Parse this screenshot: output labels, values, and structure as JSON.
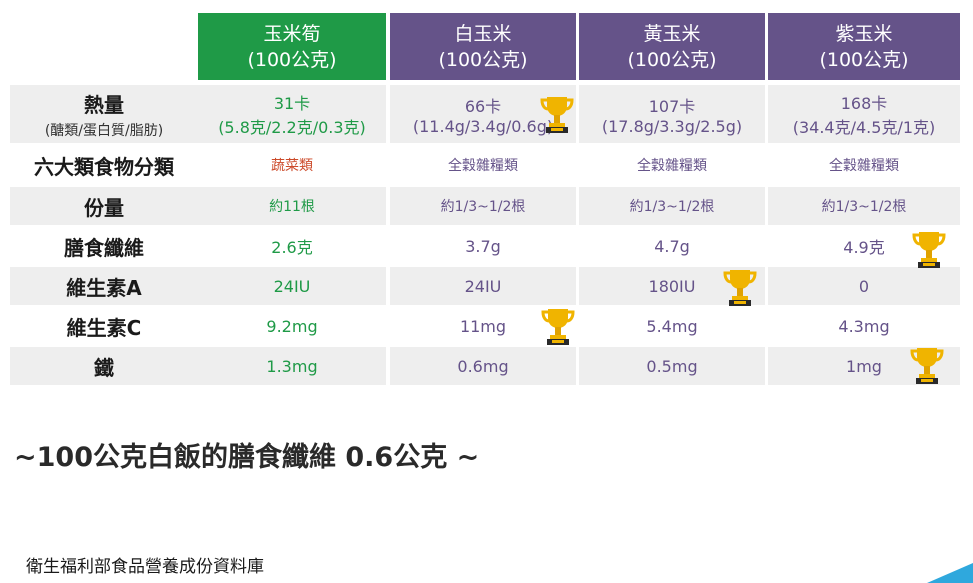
{
  "columns": [
    {
      "name": "玉米筍",
      "unit": "(100公克)"
    },
    {
      "name": "白玉米",
      "unit": "(100公克)"
    },
    {
      "name": "黃玉米",
      "unit": "(100公克)"
    },
    {
      "name": "紫玉米",
      "unit": "(100公克)"
    }
  ],
  "rows": [
    {
      "label": "熱量",
      "sub": "(醣類/蛋白質/脂肪)",
      "values": [
        {
          "line1": "31卡",
          "line2": "(5.8克/2.2克/0.3克)"
        },
        {
          "line1": "66卡",
          "line2": "(11.4g/3.4g/0.6g)"
        },
        {
          "line1": "107卡",
          "line2": "(17.8g/3.3g/2.5g)"
        },
        {
          "line1": "168卡",
          "line2": "(34.4克/4.5克/1克)"
        }
      ]
    },
    {
      "label": "六大類食物分類",
      "values": [
        "蔬菜類",
        "全穀雜糧類",
        "全穀雜糧類",
        "全穀雜糧類"
      ]
    },
    {
      "label": "份量",
      "values": [
        "約11根",
        "約1/3~1/2根",
        "約1/3~1/2根",
        "約1/3~1/2根"
      ]
    },
    {
      "label": "膳食纖維",
      "values": [
        "2.6克",
        "3.7g",
        "4.7g",
        "4.9克"
      ]
    },
    {
      "label": "維生素A",
      "values": [
        "24IU",
        "24IU",
        "180IU",
        "0"
      ]
    },
    {
      "label": "維生素C",
      "values": [
        "9.2mg",
        "11mg",
        "5.4mg",
        "4.3mg"
      ]
    },
    {
      "label": "鐵",
      "values": [
        "1.3mg",
        "0.6mg",
        "0.5mg",
        "1mg"
      ]
    }
  ],
  "note": "~100公克白飯的膳食纖維 0.6公克 ~",
  "source": "衛生福利部食品營養成份資料庫",
  "colors": {
    "green": "#1f9a47",
    "purple": "#655389",
    "red": "#cc4a2a",
    "shade": "#eeeeee",
    "trophy": "#f0b400"
  },
  "trophy_icon": "trophy-icon"
}
